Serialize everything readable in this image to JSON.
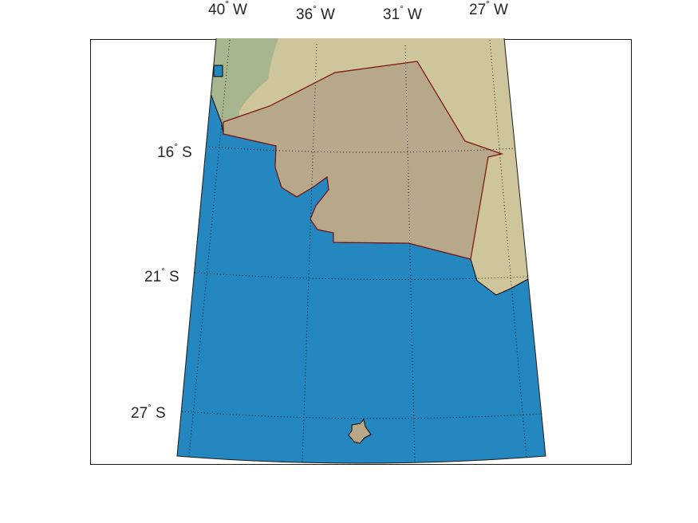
{
  "map": {
    "latitude_labels": [
      {
        "deg": "16",
        "hemi": "S"
      },
      {
        "deg": "21",
        "hemi": "S"
      },
      {
        "deg": "27",
        "hemi": "S"
      }
    ],
    "longitude_labels": [
      {
        "deg": "40",
        "hemi": "W"
      },
      {
        "deg": "36",
        "hemi": "W"
      },
      {
        "deg": "31",
        "hemi": "W"
      },
      {
        "deg": "27",
        "hemi": "W"
      }
    ],
    "degree_symbol": "°",
    "colors": {
      "ocean": "#2587bf",
      "land_light": "#cfc59a",
      "land_green": "#a8b690",
      "highlighted_region": "#b6a888",
      "region_border": "#7a1010",
      "coast_border": "#000000",
      "frame": "#1a1a1a"
    }
  }
}
